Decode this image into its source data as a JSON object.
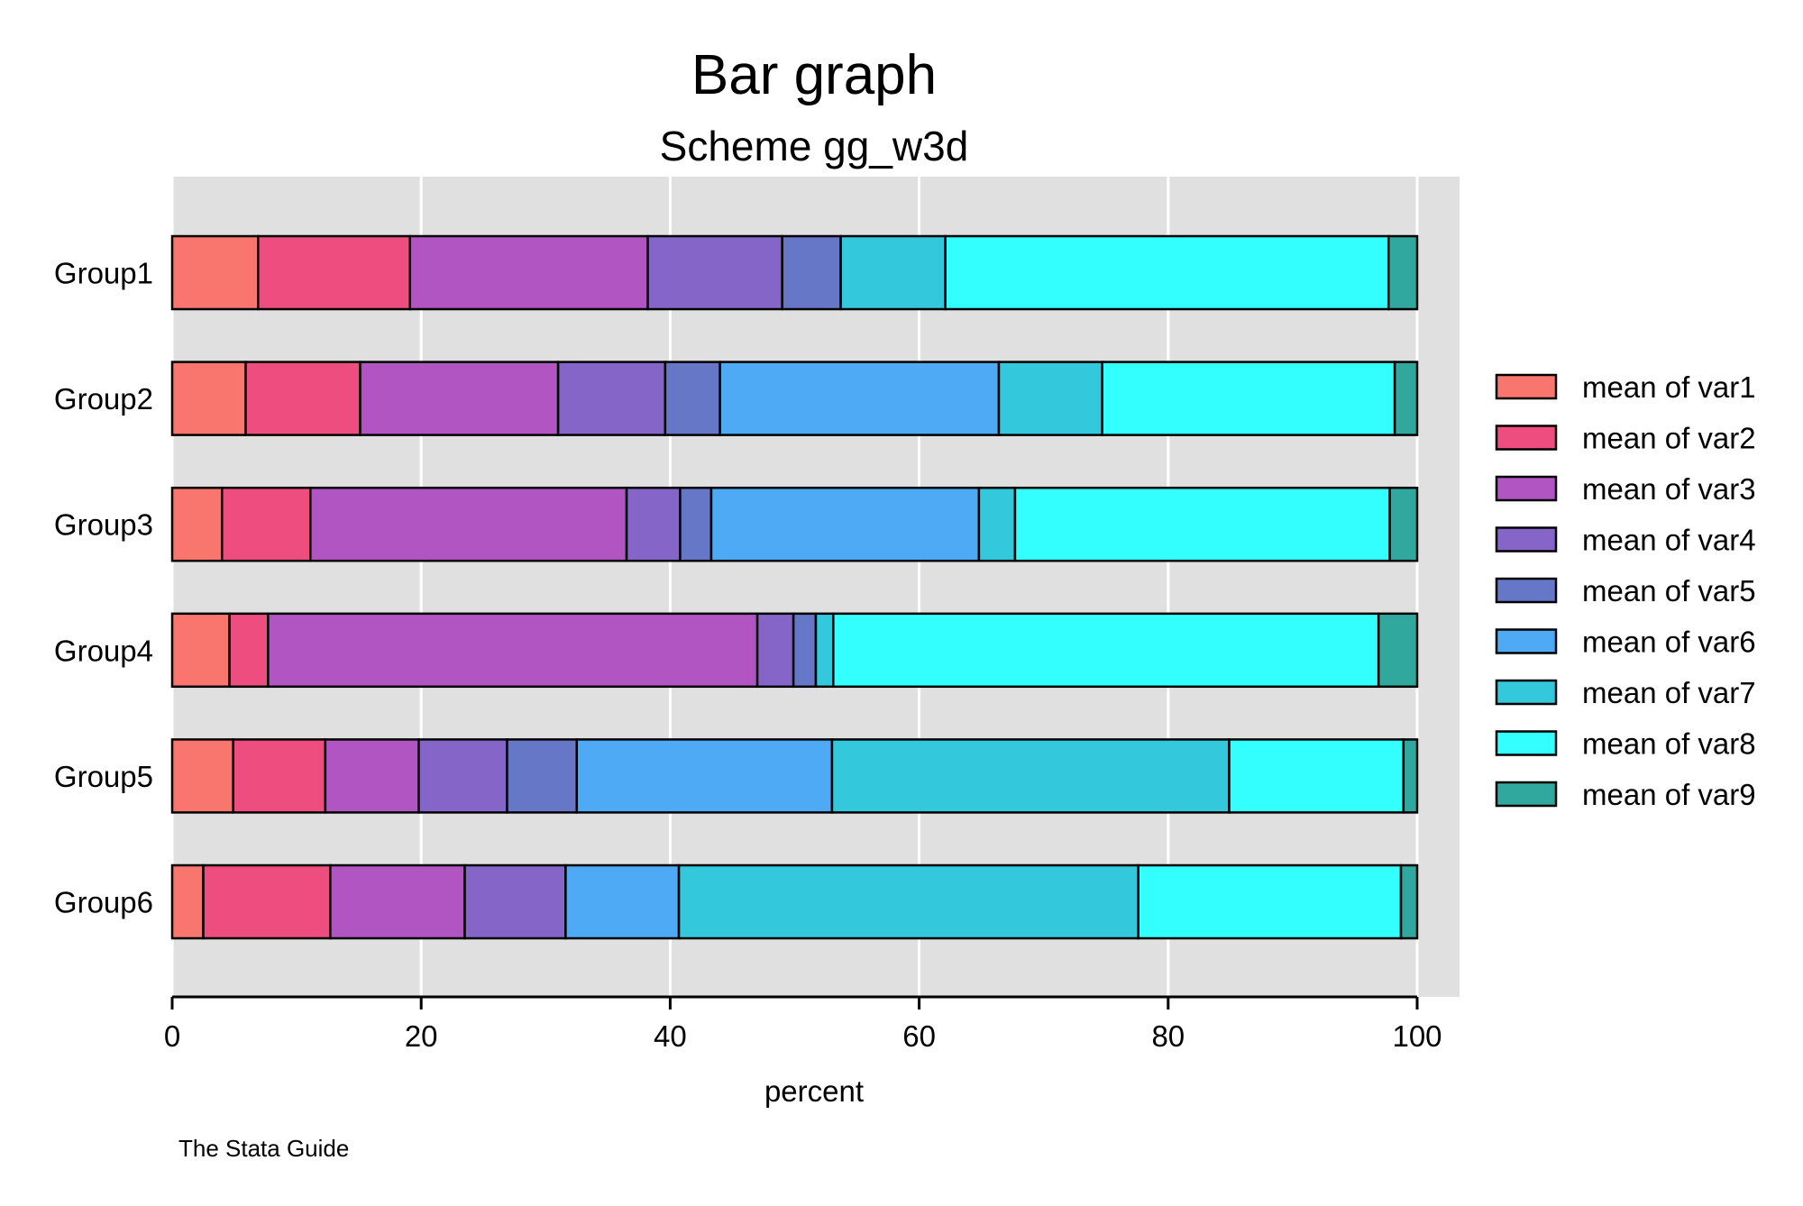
{
  "chart_data": {
    "type": "bar",
    "orientation": "horizontal",
    "stacked": true,
    "title": "Bar graph",
    "subtitle": "Scheme gg_w3d",
    "xlabel": "percent",
    "xlim": [
      0,
      100
    ],
    "xticks": [
      0,
      20,
      40,
      60,
      80,
      100
    ],
    "grid": true,
    "legend_position": "right",
    "note": "The Stata Guide",
    "categories": [
      "Group1",
      "Group2",
      "Group3",
      "Group4",
      "Group5",
      "Group6"
    ],
    "series": [
      {
        "name": "mean of var1",
        "color": "#F8766D",
        "values": [
          6.9,
          5.9,
          4.0,
          4.6,
          4.9,
          2.5
        ]
      },
      {
        "name": "mean of var2",
        "color": "#EE4D80",
        "values": [
          12.2,
          9.2,
          7.1,
          3.1,
          7.4,
          10.2
        ]
      },
      {
        "name": "mean of var3",
        "color": "#B055C2",
        "values": [
          19.1,
          15.9,
          25.4,
          39.3,
          7.5,
          10.8
        ]
      },
      {
        "name": "mean of var4",
        "color": "#8665C8",
        "values": [
          10.8,
          8.6,
          4.3,
          2.9,
          7.1,
          8.1
        ]
      },
      {
        "name": "mean of var5",
        "color": "#6777C8",
        "values": [
          4.7,
          4.4,
          2.5,
          1.8,
          5.6,
          0.0
        ]
      },
      {
        "name": "mean of var6",
        "color": "#4FAAF5",
        "values": [
          0.0,
          22.4,
          21.5,
          0.0,
          20.5,
          9.1
        ]
      },
      {
        "name": "mean of var7",
        "color": "#34C8DC",
        "values": [
          8.4,
          8.3,
          2.9,
          1.4,
          31.9,
          36.9
        ]
      },
      {
        "name": "mean of var8",
        "color": "#34FFFF",
        "values": [
          35.6,
          23.5,
          30.1,
          43.8,
          14.0,
          21.1
        ]
      },
      {
        "name": "mean of var9",
        "color": "#31A89E",
        "values": [
          2.3,
          1.8,
          2.2,
          3.1,
          1.1,
          1.3
        ]
      }
    ]
  }
}
